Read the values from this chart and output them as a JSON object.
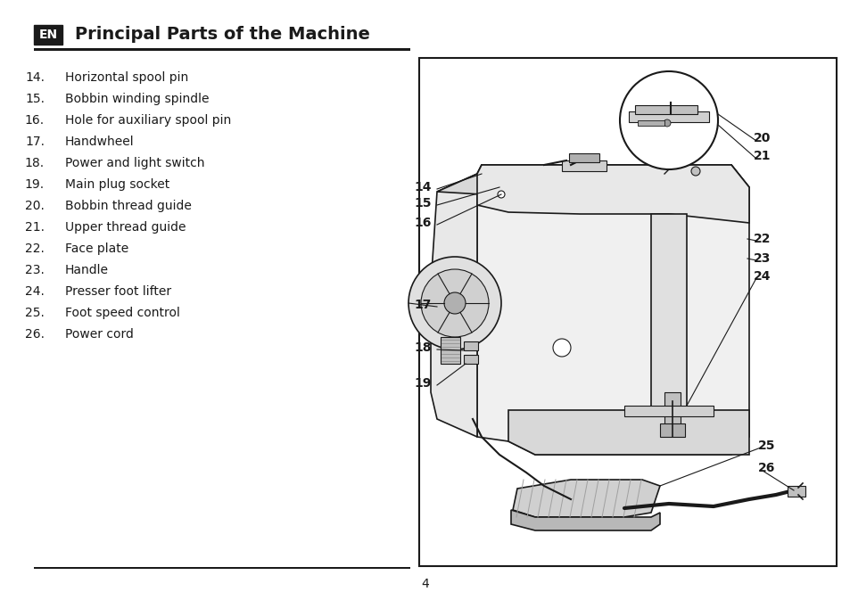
{
  "title": "Principal Parts of the Machine",
  "en_label": "EN",
  "items": [
    {
      "num": "14.",
      "text": "Horizontal spool pin"
    },
    {
      "num": "15.",
      "text": "Bobbin winding spindle"
    },
    {
      "num": "16.",
      "text": "Hole for auxiliary spool pin"
    },
    {
      "num": "17.",
      "text": "Handwheel"
    },
    {
      "num": "18.",
      "text": "Power and light switch"
    },
    {
      "num": "19.",
      "text": "Main plug socket"
    },
    {
      "num": "20.",
      "text": "Bobbin thread guide"
    },
    {
      "num": "21.",
      "text": "Upper thread guide"
    },
    {
      "num": "22.",
      "text": "Face plate"
    },
    {
      "num": "23.",
      "text": "Handle"
    },
    {
      "num": "24.",
      "text": "Presser foot lifter"
    },
    {
      "num": "25.",
      "text": "Foot speed control"
    },
    {
      "num": "26.",
      "text": "Power cord"
    }
  ],
  "page_number": "4",
  "bg_color": "#ffffff",
  "text_color": "#1a1a1a",
  "title_color": "#1a1a1a",
  "border_color": "#1a1a1a",
  "en_bg": "#1a1a1a",
  "en_fg": "#ffffff",
  "divider_color": "#1a1a1a",
  "diagram_border_color": "#1a1a1a"
}
